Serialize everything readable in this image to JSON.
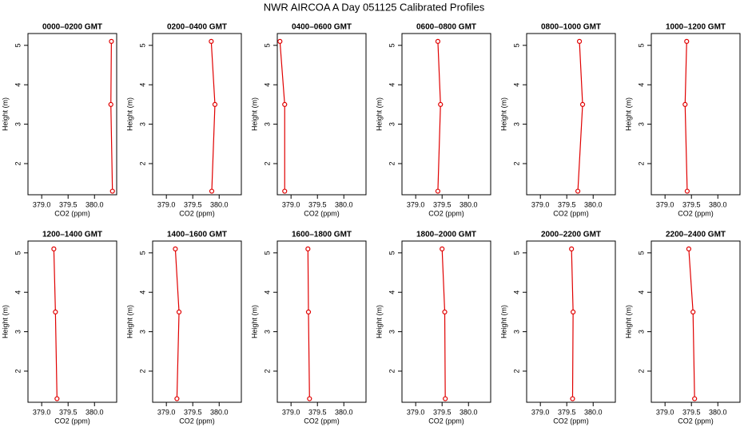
{
  "title": "NWR AIRCOA A  Day 051125  Calibrated Profiles",
  "chart_data": [
    {
      "type": "line",
      "title": "0000–0200 GMT",
      "x_label": "CO2 (ppm)",
      "y_label": "Height (m)",
      "color": "#e00000",
      "x": [
        380.32,
        380.31,
        380.34
      ],
      "y": [
        5.1,
        3.5,
        1.3
      ],
      "xlim": [
        378.74,
        380.42
      ],
      "ylim": [
        1.21,
        5.3
      ],
      "xticks": [
        {
          "value": 379,
          "label": "379.0"
        },
        379.5,
        {
          "value": 380,
          "label": "380.0"
        }
      ],
      "yticks": [
        2,
        3,
        4,
        5
      ]
    },
    {
      "type": "line",
      "title": "0200–0400 GMT",
      "x_label": "CO2 (ppm)",
      "y_label": "Height (m)",
      "color": "#e00000",
      "x": [
        379.85,
        379.92,
        379.86
      ],
      "y": [
        5.1,
        3.5,
        1.3
      ],
      "xlim": [
        378.74,
        380.42
      ],
      "ylim": [
        1.21,
        5.3
      ],
      "xticks": [
        {
          "value": 379,
          "label": "379.0"
        },
        379.5,
        {
          "value": 380,
          "label": "380.0"
        }
      ],
      "yticks": [
        2,
        3,
        4,
        5
      ]
    },
    {
      "type": "line",
      "title": "0400–0600 GMT",
      "x_label": "CO2 (ppm)",
      "y_label": "Height (m)",
      "color": "#e00000",
      "x": [
        378.79,
        378.88,
        378.88
      ],
      "y": [
        5.1,
        3.5,
        1.3
      ],
      "xlim": [
        378.74,
        380.42
      ],
      "ylim": [
        1.21,
        5.3
      ],
      "xticks": [
        {
          "value": 379,
          "label": "379.0"
        },
        379.5,
        {
          "value": 380,
          "label": "380.0"
        }
      ],
      "yticks": [
        2,
        3,
        4,
        5
      ]
    },
    {
      "type": "line",
      "title": "0600–0800 GMT",
      "x_label": "CO2 (ppm)",
      "y_label": "Height (m)",
      "color": "#e00000",
      "x": [
        379.42,
        379.47,
        379.42
      ],
      "y": [
        5.1,
        3.5,
        1.3
      ],
      "xlim": [
        378.74,
        380.42
      ],
      "ylim": [
        1.21,
        5.3
      ],
      "xticks": [
        {
          "value": 379,
          "label": "379.0"
        },
        379.5,
        {
          "value": 380,
          "label": "380.0"
        }
      ],
      "yticks": [
        2,
        3,
        4,
        5
      ]
    },
    {
      "type": "line",
      "title": "0800–1000 GMT",
      "x_label": "CO2 (ppm)",
      "y_label": "Height (m)",
      "color": "#e00000",
      "x": [
        379.74,
        379.8,
        379.71
      ],
      "y": [
        5.1,
        3.5,
        1.3
      ],
      "xlim": [
        378.74,
        380.42
      ],
      "ylim": [
        1.21,
        5.3
      ],
      "xticks": [
        {
          "value": 379,
          "label": "379.0"
        },
        379.5,
        {
          "value": 380,
          "label": "380.0"
        }
      ],
      "yticks": [
        2,
        3,
        4,
        5
      ]
    },
    {
      "type": "line",
      "title": "1000–1200 GMT",
      "x_label": "CO2 (ppm)",
      "y_label": "Height (m)",
      "color": "#e00000",
      "x": [
        379.41,
        379.38,
        379.42
      ],
      "y": [
        5.1,
        3.5,
        1.3
      ],
      "xlim": [
        378.74,
        380.42
      ],
      "ylim": [
        1.21,
        5.3
      ],
      "xticks": [
        {
          "value": 379,
          "label": "379.0"
        },
        379.5,
        {
          "value": 380,
          "label": "380.0"
        }
      ],
      "yticks": [
        2,
        3,
        4,
        5
      ]
    },
    {
      "type": "line",
      "title": "1200–1400 GMT",
      "x_label": "CO2 (ppm)",
      "y_label": "Height (m)",
      "color": "#e00000",
      "x": [
        379.23,
        379.26,
        379.29
      ],
      "y": [
        5.1,
        3.5,
        1.3
      ],
      "xlim": [
        378.74,
        380.42
      ],
      "ylim": [
        1.21,
        5.3
      ],
      "xticks": [
        {
          "value": 379,
          "label": "379.0"
        },
        379.5,
        {
          "value": 380,
          "label": "380.0"
        }
      ],
      "yticks": [
        2,
        3,
        4,
        5
      ]
    },
    {
      "type": "line",
      "title": "1400–1600 GMT",
      "x_label": "CO2 (ppm)",
      "y_label": "Height (m)",
      "color": "#e00000",
      "x": [
        379.17,
        379.24,
        379.2
      ],
      "y": [
        5.1,
        3.5,
        1.3
      ],
      "xlim": [
        378.74,
        380.42
      ],
      "ylim": [
        1.21,
        5.3
      ],
      "xticks": [
        {
          "value": 379,
          "label": "379.0"
        },
        379.5,
        {
          "value": 380,
          "label": "380.0"
        }
      ],
      "yticks": [
        2,
        3,
        4,
        5
      ]
    },
    {
      "type": "line",
      "title": "1600–1800 GMT",
      "x_label": "CO2 (ppm)",
      "y_label": "Height (m)",
      "color": "#e00000",
      "x": [
        379.32,
        379.33,
        379.35
      ],
      "y": [
        5.1,
        3.5,
        1.3
      ],
      "xlim": [
        378.74,
        380.42
      ],
      "ylim": [
        1.21,
        5.3
      ],
      "xticks": [
        {
          "value": 379,
          "label": "379.0"
        },
        379.5,
        {
          "value": 380,
          "label": "380.0"
        }
      ],
      "yticks": [
        2,
        3,
        4,
        5
      ]
    },
    {
      "type": "line",
      "title": "1800–2000 GMT",
      "x_label": "CO2 (ppm)",
      "y_label": "Height (m)",
      "color": "#e00000",
      "x": [
        379.5,
        379.55,
        379.56
      ],
      "y": [
        5.1,
        3.5,
        1.3
      ],
      "xlim": [
        378.74,
        380.42
      ],
      "ylim": [
        1.21,
        5.3
      ],
      "xticks": [
        {
          "value": 379,
          "label": "379.0"
        },
        379.5,
        {
          "value": 380,
          "label": "380.0"
        }
      ],
      "yticks": [
        2,
        3,
        4,
        5
      ]
    },
    {
      "type": "line",
      "title": "2000–2200 GMT",
      "x_label": "CO2 (ppm)",
      "y_label": "Height (m)",
      "color": "#e00000",
      "x": [
        379.59,
        379.62,
        379.61
      ],
      "y": [
        5.1,
        3.5,
        1.3
      ],
      "xlim": [
        378.74,
        380.42
      ],
      "ylim": [
        1.21,
        5.3
      ],
      "xticks": [
        {
          "value": 379,
          "label": "379.0"
        },
        379.5,
        {
          "value": 380,
          "label": "380.0"
        }
      ],
      "yticks": [
        2,
        3,
        4,
        5
      ]
    },
    {
      "type": "line",
      "title": "2200–2400 GMT",
      "x_label": "CO2 (ppm)",
      "y_label": "Height (m)",
      "color": "#e00000",
      "x": [
        379.45,
        379.53,
        379.56
      ],
      "y": [
        5.1,
        3.5,
        1.3
      ],
      "xlim": [
        378.74,
        380.42
      ],
      "ylim": [
        1.21,
        5.3
      ],
      "xticks": [
        {
          "value": 379,
          "label": "379.0"
        },
        379.5,
        {
          "value": 380,
          "label": "380.0"
        }
      ],
      "yticks": [
        2,
        3,
        4,
        5
      ]
    }
  ]
}
